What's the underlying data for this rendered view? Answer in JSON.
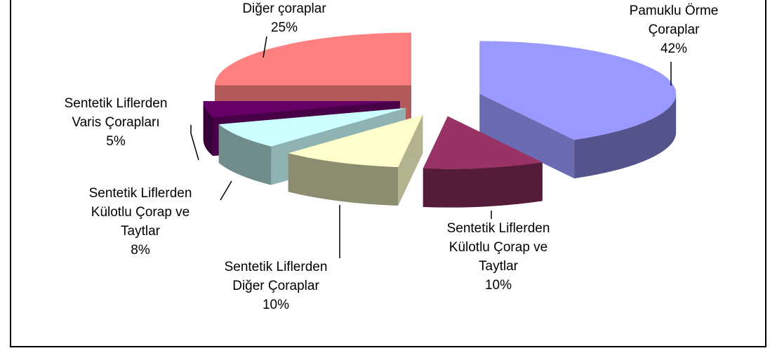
{
  "chart_data": {
    "type": "pie",
    "categories": [
      "Pamuklu Örme Çoraplar",
      "Sentetik Liflerden Külotlu Çorap ve Taytlar",
      "Sentetik Liflerden Diğer Çoraplar",
      "Sentetik Liflerden Külotlu Çorap ve Taytlar",
      "Sentetik Liflerden Varis Çorapları",
      "Diğer çoraplar"
    ],
    "values": [
      42,
      10,
      10,
      8,
      5,
      25
    ],
    "value_labels": [
      "42%",
      "10%",
      "10%",
      "8%",
      "5%",
      "25%"
    ],
    "colors": [
      "#9999ff",
      "#993366",
      "#ffffcc",
      "#ccffff",
      "#660066",
      "#ff8080"
    ]
  }
}
